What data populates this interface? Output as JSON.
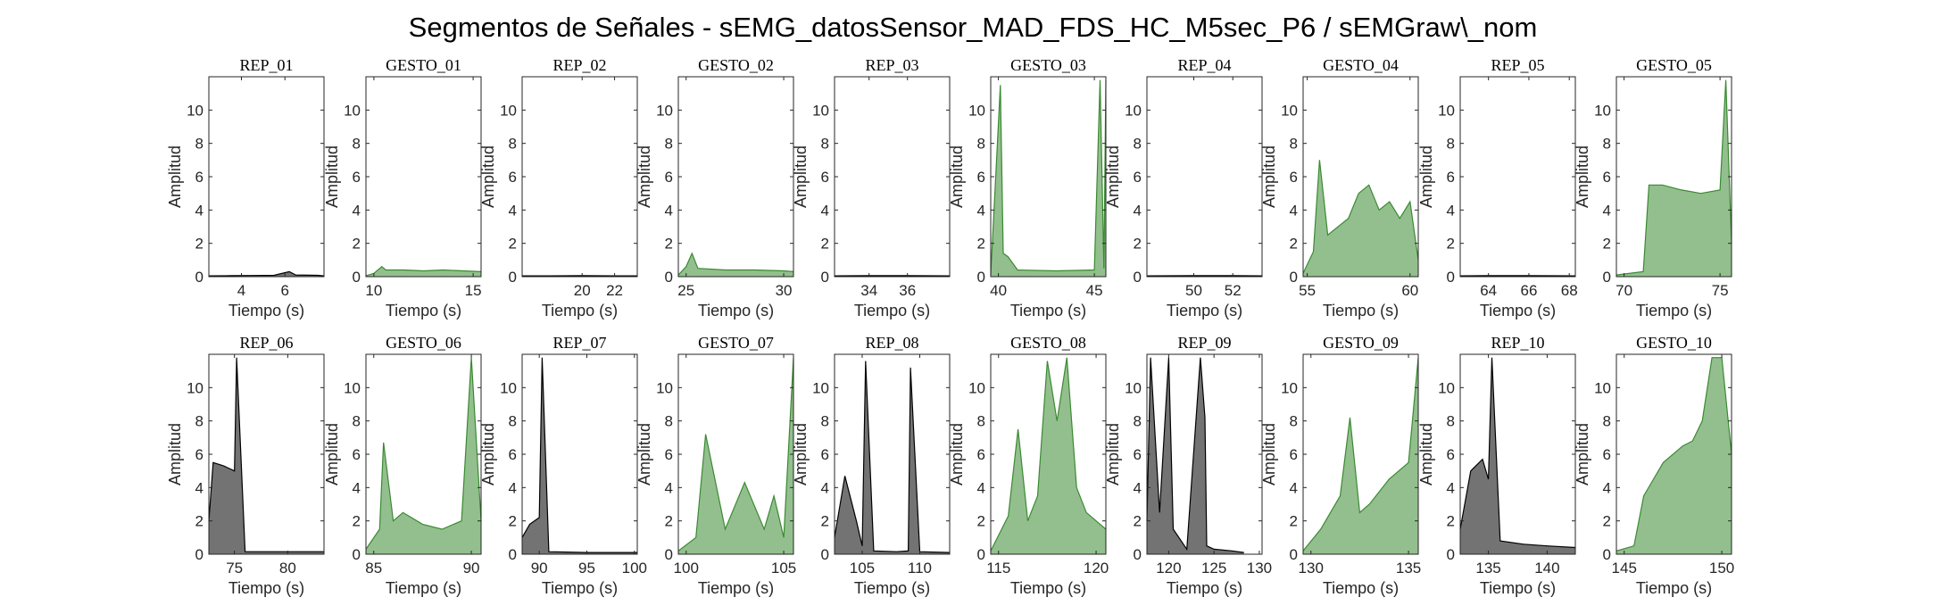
{
  "figure": {
    "title": "Segmentos de Señales - sEMG_datosSensor_MAD_FDS_HC_M5sec_P6 / sEMGraw\\_nom"
  },
  "colors": {
    "rep": "#000000",
    "gesto": "#3a8a32"
  },
  "chart_data": [
    {
      "type": "line",
      "title": "REP_01",
      "kind": "rep",
      "xlabel": "Tiempo (s)",
      "ylabel": "Amplitud",
      "xlim": [
        2.5,
        7.8
      ],
      "xticks": [
        4,
        6
      ],
      "ylim": [
        0,
        12
      ],
      "yticks": [
        0,
        2,
        4,
        6,
        8,
        10
      ],
      "series": [
        {
          "x": [
            2.5,
            3.5,
            4.5,
            5.5,
            6.2,
            6.5,
            7.5,
            7.8
          ],
          "y": [
            0.05,
            0.06,
            0.07,
            0.08,
            0.3,
            0.1,
            0.08,
            0.05
          ]
        }
      ]
    },
    {
      "type": "line",
      "title": "GESTO_01",
      "kind": "gesto",
      "xlabel": "Tiempo (s)",
      "ylabel": "Amplitud",
      "xlim": [
        9.6,
        15.4
      ],
      "xticks": [
        10,
        15
      ],
      "ylim": [
        0,
        12
      ],
      "yticks": [
        0,
        2,
        4,
        6,
        8,
        10
      ],
      "series": [
        {
          "x": [
            9.6,
            10.0,
            10.4,
            10.6,
            11.5,
            12.5,
            13.5,
            14.5,
            15.4
          ],
          "y": [
            0.05,
            0.2,
            0.6,
            0.4,
            0.4,
            0.35,
            0.4,
            0.35,
            0.3
          ]
        }
      ]
    },
    {
      "type": "line",
      "title": "REP_02",
      "kind": "rep",
      "xlabel": "Tiempo (s)",
      "ylabel": "Amplitud",
      "xlim": [
        16.3,
        23.4
      ],
      "xticks": [
        20,
        22
      ],
      "ylim": [
        0,
        12
      ],
      "yticks": [
        0,
        2,
        4,
        6,
        8,
        10
      ],
      "series": [
        {
          "x": [
            16.3,
            18,
            20,
            22,
            23.4
          ],
          "y": [
            0.05,
            0.05,
            0.06,
            0.05,
            0.05
          ]
        }
      ]
    },
    {
      "type": "line",
      "title": "GESTO_02",
      "kind": "gesto",
      "xlabel": "Tiempo (s)",
      "ylabel": "Amplitud",
      "xlim": [
        24.6,
        30.5
      ],
      "xticks": [
        25,
        30
      ],
      "ylim": [
        0,
        12
      ],
      "yticks": [
        0,
        2,
        4,
        6,
        8,
        10
      ],
      "series": [
        {
          "x": [
            24.6,
            25.0,
            25.3,
            25.6,
            27,
            28.5,
            30,
            30.5
          ],
          "y": [
            0.1,
            0.6,
            1.4,
            0.5,
            0.4,
            0.4,
            0.35,
            0.3
          ]
        }
      ]
    },
    {
      "type": "line",
      "title": "REP_03",
      "kind": "rep",
      "xlabel": "Tiempo (s)",
      "ylabel": "Amplitud",
      "xlim": [
        32.2,
        38.2
      ],
      "xticks": [
        34,
        36
      ],
      "ylim": [
        0,
        12
      ],
      "yticks": [
        0,
        2,
        4,
        6,
        8,
        10
      ],
      "series": [
        {
          "x": [
            32.2,
            34,
            36,
            38.2
          ],
          "y": [
            0.05,
            0.06,
            0.06,
            0.05
          ]
        }
      ]
    },
    {
      "type": "line",
      "title": "GESTO_03",
      "kind": "gesto",
      "xlabel": "Tiempo (s)",
      "ylabel": "Amplitud",
      "xlim": [
        39.6,
        45.6
      ],
      "xticks": [
        40,
        45
      ],
      "ylim": [
        0,
        12
      ],
      "yticks": [
        0,
        2,
        4,
        6,
        8,
        10
      ],
      "series": [
        {
          "x": [
            39.6,
            40.1,
            40.25,
            40.5,
            41,
            43,
            45,
            45.3,
            45.5,
            45.6
          ],
          "y": [
            0.1,
            11.5,
            1.4,
            1.2,
            0.4,
            0.35,
            0.4,
            11.8,
            0.5,
            11.8
          ]
        }
      ]
    },
    {
      "type": "line",
      "title": "REP_04",
      "kind": "rep",
      "xlabel": "Tiempo (s)",
      "ylabel": "Amplitud",
      "xlim": [
        47.6,
        53.5
      ],
      "xticks": [
        50,
        52
      ],
      "ylim": [
        0,
        12
      ],
      "yticks": [
        0,
        2,
        4,
        6,
        8,
        10
      ],
      "series": [
        {
          "x": [
            47.6,
            50,
            52,
            53.5
          ],
          "y": [
            0.05,
            0.06,
            0.06,
            0.05
          ]
        }
      ]
    },
    {
      "type": "line",
      "title": "GESTO_04",
      "kind": "gesto",
      "xlabel": "Tiempo (s)",
      "ylabel": "Amplitud",
      "xlim": [
        54.8,
        60.4
      ],
      "xticks": [
        55,
        60
      ],
      "ylim": [
        0,
        12
      ],
      "yticks": [
        0,
        2,
        4,
        6,
        8,
        10
      ],
      "series": [
        {
          "x": [
            54.8,
            55.3,
            55.6,
            56,
            57,
            57.5,
            58,
            58.5,
            59,
            59.5,
            60,
            60.4
          ],
          "y": [
            0.2,
            1.5,
            7.0,
            2.5,
            3.5,
            5.0,
            5.5,
            4.0,
            4.5,
            3.5,
            4.5,
            1.0
          ]
        }
      ]
    },
    {
      "type": "line",
      "title": "REP_05",
      "kind": "rep",
      "xlabel": "Tiempo (s)",
      "ylabel": "Amplitud",
      "xlim": [
        62.6,
        68.3
      ],
      "xticks": [
        64,
        66,
        68
      ],
      "ylim": [
        0,
        12
      ],
      "yticks": [
        0,
        2,
        4,
        6,
        8,
        10
      ],
      "series": [
        {
          "x": [
            62.6,
            64,
            66,
            68.3
          ],
          "y": [
            0.05,
            0.06,
            0.06,
            0.05
          ]
        }
      ]
    },
    {
      "type": "line",
      "title": "GESTO_05",
      "kind": "gesto",
      "xlabel": "Tiempo (s)",
      "ylabel": "Amplitud",
      "xlim": [
        69.6,
        75.6
      ],
      "xticks": [
        70,
        75
      ],
      "ylim": [
        0,
        12
      ],
      "yticks": [
        0,
        2,
        4,
        6,
        8,
        10
      ],
      "series": [
        {
          "x": [
            69.6,
            71.0,
            71.3,
            72,
            73,
            74,
            75,
            75.3,
            75.6
          ],
          "y": [
            0.1,
            0.3,
            5.5,
            5.5,
            5.2,
            5.0,
            5.2,
            11.8,
            2.0
          ]
        }
      ]
    },
    {
      "type": "line",
      "title": "REP_06",
      "kind": "rep",
      "xlabel": "Tiempo (s)",
      "ylabel": "Amplitud",
      "xlim": [
        72.6,
        83.4
      ],
      "xticks": [
        75,
        80
      ],
      "ylim": [
        0,
        12
      ],
      "yticks": [
        0,
        2,
        4,
        6,
        8,
        10
      ],
      "series": [
        {
          "x": [
            72.6,
            73,
            74,
            75,
            75.2,
            76,
            78,
            80,
            83.4
          ],
          "y": [
            2.0,
            5.5,
            5.3,
            5.0,
            11.8,
            0.15,
            0.15,
            0.15,
            0.15
          ]
        }
      ]
    },
    {
      "type": "line",
      "title": "GESTO_06",
      "kind": "gesto",
      "xlabel": "Tiempo (s)",
      "ylabel": "Amplitud",
      "xlim": [
        84.6,
        90.5
      ],
      "xticks": [
        85,
        90
      ],
      "ylim": [
        0,
        12
      ],
      "yticks": [
        0,
        2,
        4,
        6,
        8,
        10
      ],
      "series": [
        {
          "x": [
            84.6,
            85.3,
            85.5,
            86,
            86.5,
            87.5,
            88.5,
            89.5,
            90,
            90.5
          ],
          "y": [
            0.3,
            1.5,
            6.7,
            2.0,
            2.5,
            1.8,
            1.5,
            2.0,
            11.8,
            2.0
          ]
        }
      ]
    },
    {
      "type": "line",
      "title": "REP_07",
      "kind": "rep",
      "xlabel": "Tiempo (s)",
      "ylabel": "Amplitud",
      "xlim": [
        88.2,
        100.3
      ],
      "xticks": [
        90,
        95,
        100
      ],
      "ylim": [
        0,
        12
      ],
      "yticks": [
        0,
        2,
        4,
        6,
        8,
        10
      ],
      "series": [
        {
          "x": [
            88.2,
            89,
            90,
            90.3,
            91,
            95,
            100.3
          ],
          "y": [
            1.0,
            1.8,
            2.2,
            11.8,
            0.15,
            0.1,
            0.1
          ]
        }
      ]
    },
    {
      "type": "line",
      "title": "GESTO_07",
      "kind": "gesto",
      "xlabel": "Tiempo (s)",
      "ylabel": "Amplitud",
      "xlim": [
        99.6,
        105.5
      ],
      "xticks": [
        100,
        105
      ],
      "ylim": [
        0,
        12
      ],
      "yticks": [
        0,
        2,
        4,
        6,
        8,
        10
      ],
      "series": [
        {
          "x": [
            99.6,
            100.5,
            101,
            102,
            103,
            104,
            104.5,
            105,
            105.5
          ],
          "y": [
            0.2,
            1.0,
            7.2,
            1.5,
            4.3,
            1.5,
            3.5,
            1.0,
            11.8
          ]
        }
      ]
    },
    {
      "type": "line",
      "title": "REP_08",
      "kind": "rep",
      "xlabel": "Tiempo (s)",
      "ylabel": "Amplitud",
      "xlim": [
        102.6,
        112.6
      ],
      "xticks": [
        105,
        110
      ],
      "ylim": [
        0,
        12
      ],
      "yticks": [
        0,
        2,
        4,
        6,
        8,
        10
      ],
      "series": [
        {
          "x": [
            102.6,
            103.5,
            104.5,
            105,
            105.3,
            106,
            108,
            109,
            109.2,
            110,
            112.6
          ],
          "y": [
            1.0,
            4.7,
            2.0,
            0.5,
            11.6,
            0.2,
            0.15,
            0.2,
            11.2,
            0.15,
            0.1
          ]
        }
      ]
    },
    {
      "type": "line",
      "title": "GESTO_08",
      "kind": "gesto",
      "xlabel": "Tiempo (s)",
      "ylabel": "Amplitud",
      "xlim": [
        114.6,
        120.5
      ],
      "xticks": [
        115,
        120
      ],
      "ylim": [
        0,
        12
      ],
      "yticks": [
        0,
        2,
        4,
        6,
        8,
        10
      ],
      "series": [
        {
          "x": [
            114.6,
            115.5,
            116,
            116.5,
            117,
            117.5,
            118,
            118.5,
            119,
            119.5,
            120,
            120.5
          ],
          "y": [
            0.2,
            2.3,
            7.5,
            2.0,
            3.5,
            11.6,
            8.0,
            11.8,
            4.0,
            2.5,
            2.0,
            1.5
          ]
        }
      ]
    },
    {
      "type": "line",
      "title": "REP_09",
      "kind": "rep",
      "xlabel": "Tiempo (s)",
      "ylabel": "Amplitud",
      "xlim": [
        117.6,
        130.3
      ],
      "xticks": [
        120,
        125,
        130
      ],
      "ylim": [
        0,
        12
      ],
      "yticks": [
        0,
        2,
        4,
        6,
        8,
        10
      ],
      "series": [
        {
          "x": [
            117.6,
            118,
            119,
            120,
            120.5,
            122,
            123.5,
            124,
            124.2,
            125,
            127,
            128.3
          ],
          "y": [
            2.0,
            11.8,
            2.5,
            11.8,
            1.5,
            0.3,
            11.8,
            8.2,
            0.5,
            0.3,
            0.2,
            0.1
          ]
        }
      ]
    },
    {
      "type": "line",
      "title": "GESTO_09",
      "kind": "gesto",
      "xlabel": "Tiempo (s)",
      "ylabel": "Amplitud",
      "xlim": [
        129.6,
        135.5
      ],
      "xticks": [
        130,
        135
      ],
      "ylim": [
        0,
        12
      ],
      "yticks": [
        0,
        2,
        4,
        6,
        8,
        10
      ],
      "series": [
        {
          "x": [
            129.6,
            130.5,
            131.5,
            132,
            132.5,
            133,
            134,
            135,
            135.5
          ],
          "y": [
            0.2,
            1.5,
            3.5,
            8.2,
            2.5,
            3.0,
            4.5,
            5.5,
            11.8
          ]
        }
      ]
    },
    {
      "type": "line",
      "title": "REP_10",
      "kind": "rep",
      "xlabel": "Tiempo (s)",
      "ylabel": "Amplitud",
      "xlim": [
        132.6,
        142.4
      ],
      "xticks": [
        135,
        140
      ],
      "ylim": [
        0,
        12
      ],
      "yticks": [
        0,
        2,
        4,
        6,
        8,
        10
      ],
      "series": [
        {
          "x": [
            132.6,
            133.5,
            134.5,
            135,
            135.3,
            136,
            138,
            140,
            142.4
          ],
          "y": [
            1.5,
            5.0,
            5.7,
            4.5,
            11.8,
            0.8,
            0.6,
            0.5,
            0.4
          ]
        }
      ]
    },
    {
      "type": "line",
      "title": "GESTO_10",
      "kind": "gesto",
      "xlabel": "Tiempo (s)",
      "ylabel": "Amplitud",
      "xlim": [
        144.6,
        150.5
      ],
      "xticks": [
        145,
        150
      ],
      "ylim": [
        0,
        12
      ],
      "yticks": [
        0,
        2,
        4,
        6,
        8,
        10
      ],
      "series": [
        {
          "x": [
            144.6,
            145.5,
            146,
            146.5,
            147,
            148,
            148.5,
            149,
            149.5,
            150,
            150.5
          ],
          "y": [
            0.2,
            0.5,
            3.5,
            4.5,
            5.5,
            6.5,
            6.8,
            8.0,
            11.8,
            11.8,
            6.0
          ]
        }
      ]
    }
  ]
}
